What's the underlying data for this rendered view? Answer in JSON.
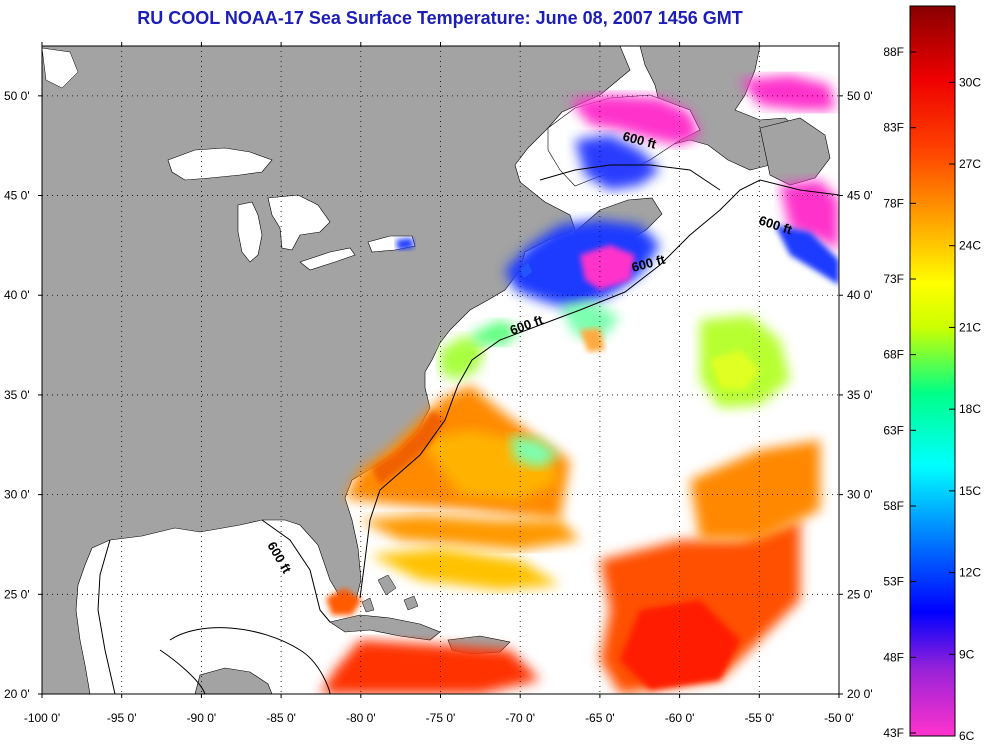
{
  "title": "RU COOL  NOAA-17  Sea Surface Temperature:  June 08, 2007 1456 GMT",
  "map": {
    "lon_range": [
      -100,
      -50
    ],
    "lat_range": [
      20,
      52.5
    ],
    "x_ticks": [
      {
        "value": -100,
        "label": "-100 0'"
      },
      {
        "value": -95,
        "label": "-95 0'"
      },
      {
        "value": -90,
        "label": "-90 0'"
      },
      {
        "value": -85,
        "label": "-85 0'"
      },
      {
        "value": -80,
        "label": "-80 0'"
      },
      {
        "value": -75,
        "label": "-75 0'"
      },
      {
        "value": -70,
        "label": "-70 0'"
      },
      {
        "value": -65,
        "label": "-65 0'"
      },
      {
        "value": -60,
        "label": "-60 0'"
      },
      {
        "value": -55,
        "label": "-55 0'"
      },
      {
        "value": -50,
        "label": "-50 0'"
      }
    ],
    "y_ticks": [
      {
        "value": 20,
        "label": "20 0'"
      },
      {
        "value": 25,
        "label": "25 0'"
      },
      {
        "value": 30,
        "label": "30 0'"
      },
      {
        "value": 35,
        "label": "35 0'"
      },
      {
        "value": 40,
        "label": "40 0'"
      },
      {
        "value": 45,
        "label": "45 0'"
      },
      {
        "value": 50,
        "label": "50 0'"
      }
    ],
    "grid": "dotted",
    "contour_label": "600 ft",
    "colors": {
      "land": "#a3a3a3",
      "ocean_no_data": "#ffffff",
      "border": "#000000"
    }
  },
  "colorbar": {
    "range_c": [
      6,
      32.8
    ],
    "stops": [
      "#ff33cc",
      "#9a22d8",
      "#0000ff",
      "#0088ff",
      "#00ffff",
      "#00ff88",
      "#ccff00",
      "#ffff00",
      "#ffaa00",
      "#ff4400",
      "#ee0000",
      "#880000"
    ],
    "fahrenheit_labels": [
      "88F",
      "83F",
      "78F",
      "73F",
      "68F",
      "63F",
      "58F",
      "53F",
      "48F",
      "43F"
    ],
    "celsius_labels": [
      "30C",
      "27C",
      "24C",
      "21C",
      "18C",
      "15C",
      "12C",
      "9C",
      "6C"
    ]
  }
}
